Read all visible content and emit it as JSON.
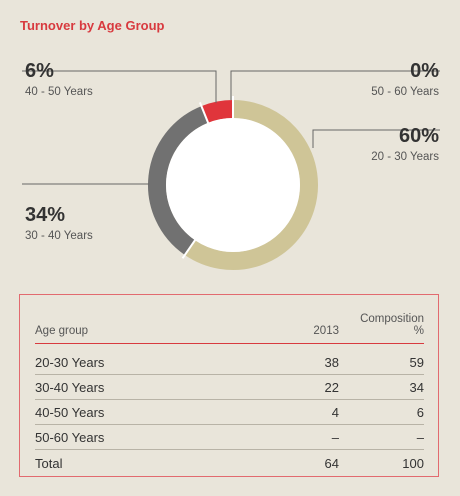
{
  "title": "Turnover by Age Group",
  "chart_data": {
    "type": "pie",
    "style": "donut",
    "slices": [
      {
        "label": "20 - 30 Years",
        "pct_label": "60%",
        "value": 59,
        "color": "#cfc597"
      },
      {
        "label": "30 - 40 Years",
        "pct_label": "34%",
        "value": 34,
        "color": "#717171"
      },
      {
        "label": "40 - 50 Years",
        "pct_label": "6%",
        "value": 6,
        "color": "#e0353b"
      },
      {
        "label": "50 - 60 Years",
        "pct_label": "0%",
        "value": 0,
        "color": "#d83a3f"
      }
    ]
  },
  "table": {
    "headers": {
      "col1": "Age group",
      "col2": "2013",
      "col3_line1": "Composition",
      "col3_line2": "%"
    },
    "rows": [
      {
        "group": "20-30 Years",
        "y2013": "38",
        "composition": "59"
      },
      {
        "group": "30-40 Years",
        "y2013": "22",
        "composition": "34"
      },
      {
        "group": "40-50 Years",
        "y2013": "4",
        "composition": "6"
      },
      {
        "group": "50-60 Years",
        "y2013": "–",
        "composition": "–"
      }
    ],
    "total": {
      "group": "Total",
      "y2013": "64",
      "composition": "100"
    }
  }
}
